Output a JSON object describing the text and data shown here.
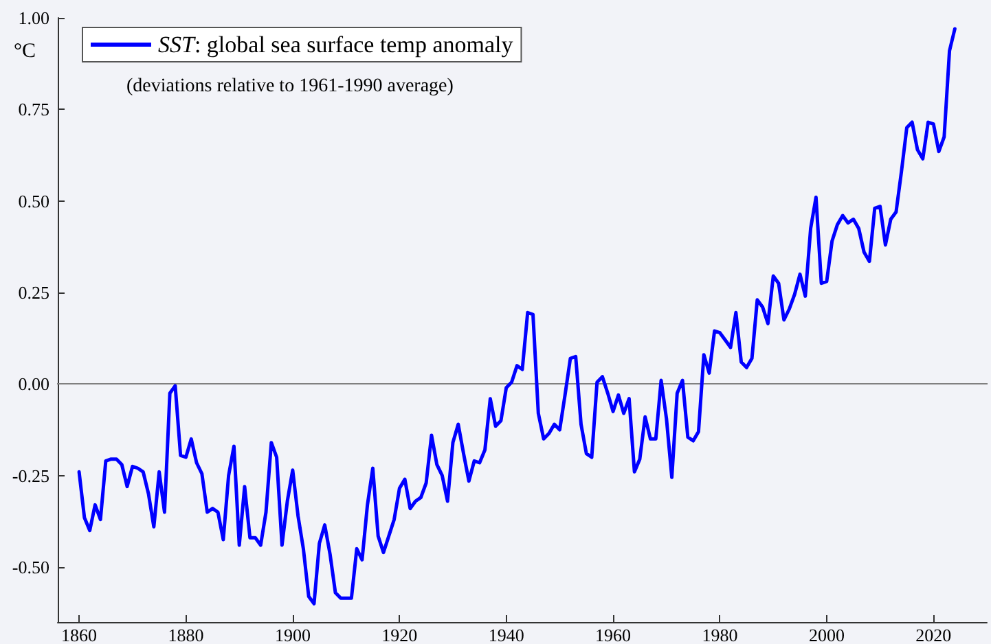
{
  "chart_data": {
    "type": "line",
    "ylabel": "°C",
    "annotations": [
      "(deviations relative to 1961-1990 average)"
    ],
    "x": [
      1860,
      1861,
      1862,
      1863,
      1864,
      1865,
      1866,
      1867,
      1868,
      1869,
      1870,
      1871,
      1872,
      1873,
      1874,
      1875,
      1876,
      1877,
      1878,
      1879,
      1880,
      1881,
      1882,
      1883,
      1884,
      1885,
      1886,
      1887,
      1888,
      1889,
      1890,
      1891,
      1892,
      1893,
      1894,
      1895,
      1896,
      1897,
      1898,
      1899,
      1900,
      1901,
      1902,
      1903,
      1904,
      1905,
      1906,
      1907,
      1908,
      1909,
      1910,
      1911,
      1912,
      1913,
      1914,
      1915,
      1916,
      1917,
      1918,
      1919,
      1920,
      1921,
      1922,
      1923,
      1924,
      1925,
      1926,
      1927,
      1928,
      1929,
      1930,
      1931,
      1932,
      1933,
      1934,
      1935,
      1936,
      1937,
      1938,
      1939,
      1940,
      1941,
      1942,
      1943,
      1944,
      1945,
      1946,
      1947,
      1948,
      1949,
      1950,
      1951,
      1952,
      1953,
      1954,
      1955,
      1956,
      1957,
      1958,
      1959,
      1960,
      1961,
      1962,
      1963,
      1964,
      1965,
      1966,
      1967,
      1968,
      1969,
      1970,
      1971,
      1972,
      1973,
      1974,
      1975,
      1976,
      1977,
      1978,
      1979,
      1980,
      1981,
      1982,
      1983,
      1984,
      1985,
      1986,
      1987,
      1988,
      1989,
      1990,
      1991,
      1992,
      1993,
      1994,
      1995,
      1996,
      1997,
      1998,
      1999,
      2000,
      2001,
      2002,
      2003,
      2004,
      2005,
      2006,
      2007,
      2008,
      2009,
      2010,
      2011,
      2012,
      2013,
      2014,
      2015,
      2016,
      2017,
      2018,
      2019,
      2020,
      2021,
      2022,
      2023,
      2024
    ],
    "series": [
      {
        "name": "SST: global sea surface temp anomaly",
        "color": "#0000ff",
        "values": [
          -0.24,
          -0.365,
          -0.4,
          -0.33,
          -0.37,
          -0.21,
          -0.205,
          -0.205,
          -0.22,
          -0.28,
          -0.225,
          -0.23,
          -0.24,
          -0.3,
          -0.39,
          -0.24,
          -0.35,
          -0.025,
          -0.005,
          -0.195,
          -0.2,
          -0.15,
          -0.215,
          -0.245,
          -0.35,
          -0.34,
          -0.35,
          -0.425,
          -0.25,
          -0.17,
          -0.44,
          -0.28,
          -0.42,
          -0.42,
          -0.44,
          -0.35,
          -0.16,
          -0.2,
          -0.44,
          -0.32,
          -0.235,
          -0.36,
          -0.45,
          -0.58,
          -0.6,
          -0.435,
          -0.385,
          -0.465,
          -0.57,
          -0.585,
          -0.585,
          -0.585,
          -0.45,
          -0.48,
          -0.33,
          -0.23,
          -0.415,
          -0.46,
          -0.415,
          -0.37,
          -0.285,
          -0.26,
          -0.34,
          -0.32,
          -0.31,
          -0.27,
          -0.14,
          -0.22,
          -0.25,
          -0.32,
          -0.16,
          -0.11,
          -0.19,
          -0.265,
          -0.21,
          -0.215,
          -0.18,
          -0.04,
          -0.115,
          -0.1,
          -0.01,
          0.005,
          0.05,
          0.04,
          0.195,
          0.19,
          -0.08,
          -0.15,
          -0.135,
          -0.11,
          -0.125,
          -0.03,
          0.07,
          0.075,
          -0.11,
          -0.19,
          -0.2,
          0.005,
          0.02,
          -0.025,
          -0.075,
          -0.03,
          -0.08,
          -0.04,
          -0.24,
          -0.205,
          -0.09,
          -0.15,
          -0.15,
          0.01,
          -0.095,
          -0.255,
          -0.025,
          0.01,
          -0.145,
          -0.155,
          -0.13,
          0.08,
          0.03,
          0.145,
          0.14,
          0.12,
          0.1,
          0.195,
          0.06,
          0.045,
          0.07,
          0.23,
          0.21,
          0.165,
          0.295,
          0.275,
          0.175,
          0.205,
          0.245,
          0.3,
          0.24,
          0.425,
          0.51,
          0.275,
          0.28,
          0.39,
          0.435,
          0.46,
          0.44,
          0.45,
          0.425,
          0.36,
          0.335,
          0.48,
          0.485,
          0.38,
          0.45,
          0.47,
          0.58,
          0.7,
          0.715,
          0.64,
          0.615,
          0.715,
          0.71,
          0.635,
          0.675,
          0.91,
          0.97
        ]
      }
    ],
    "xlim": [
      1856,
      2030
    ],
    "xticks": [
      1860,
      1880,
      1900,
      1920,
      1940,
      1960,
      1980,
      2000,
      2020
    ],
    "ylim": [
      -0.65,
      1.0
    ],
    "yticks": [
      {
        "value": -0.5,
        "label": "-0.50"
      },
      -0.25,
      {
        "value": 0,
        "label": "0.00"
      },
      0.25,
      {
        "value": 0.5,
        "label": "0.50"
      },
      0.75,
      {
        "value": 1,
        "label": "1.00"
      }
    ],
    "ref_lines": [
      {
        "axis": "y",
        "value": 0,
        "color": "#808080"
      }
    ],
    "grid": false,
    "legend": "top left",
    "marker": "none",
    "line_style": "solid"
  }
}
